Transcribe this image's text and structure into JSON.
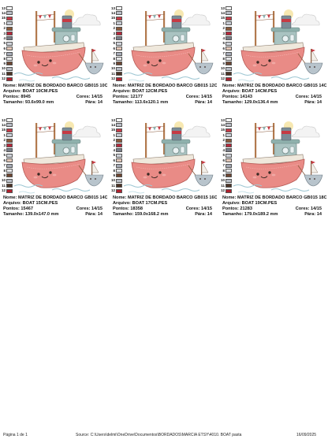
{
  "labels": {
    "name": "Nome:",
    "file": "Arquivo:",
    "stitches": "Pontos:",
    "size": "Tamanho:",
    "colors": "Cores:",
    "stops": "Pára:"
  },
  "palette": [
    "#c9cdd6",
    "#8a5a3c",
    "#b8293c",
    "#7a7e8a",
    "#cfd2da",
    "#e3c7b8",
    "#a5aab6",
    "#e8e8ea",
    "#6e4632",
    "#b8bcc4",
    "#4e3426",
    "#b0212e",
    "#ffffff",
    "#b9bdc6",
    "#c73a46"
  ],
  "swatch_numbers": [
    "1",
    "2",
    "3",
    "4",
    "5",
    "6",
    "7",
    "8",
    "9",
    "10",
    "11",
    "12",
    "13",
    "14",
    "15"
  ],
  "designs": [
    {
      "name": "MATRIZ DE BORDADO BARCO GB015 10CM",
      "file": "BOAT 10CM.PES",
      "stitches": "8945",
      "size": "93.6x99.0 mm",
      "colors": "14/15",
      "stops": "14"
    },
    {
      "name": "MATRIZ DE BORDADO BARCO GB015 12CM",
      "file": "BOAT 12CM.PES",
      "stitches": "12177",
      "size": "113.6x120.1 mm",
      "colors": "14/15",
      "stops": "14"
    },
    {
      "name": "MATRIZ DE BORDADO BARCO GB015 14CM",
      "file": "BOAT 14CM.PES",
      "stitches": "14143",
      "size": "129.0x136.4 mm",
      "colors": "14/15",
      "stops": "14"
    },
    {
      "name": "MATRIZ DE BORDADO BARCO GB015 14CM",
      "file": "BOAT 15CM.PES",
      "stitches": "15467",
      "size": "139.0x147.0 mm",
      "colors": "14/15",
      "stops": "14"
    },
    {
      "name": "MATRIZ DE BORDADO BARCO GB015 16CM",
      "file": "BOAT 17CM.PES",
      "stitches": "18358",
      "size": "159.0x168.2 mm",
      "colors": "14/15",
      "stops": "14"
    },
    {
      "name": "MATRIZ DE BORDADO BARCO GB015 18CM",
      "file": "BOAT 19CM.PES",
      "stitches": "21283",
      "size": "179.0x189.2 mm",
      "colors": "14/15",
      "stops": "14"
    }
  ],
  "footer": {
    "page": "Página 1 de 1",
    "source": "Source: C:\\Users\\delmi\\OneDrive\\Documentos\\BORDADOS\\MARCIA ETSY\\4010. BOAT pasta",
    "date": "16/09/2025"
  }
}
